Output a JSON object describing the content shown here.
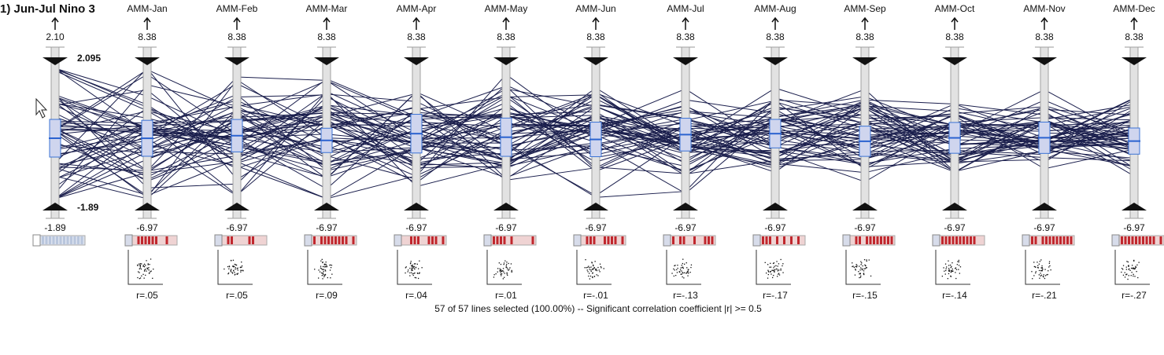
{
  "title": "1) Jun-Jul Nino 3",
  "source_axis": {
    "max": "2.10",
    "min": "-1.89",
    "brush_top": "2.095",
    "brush_bottom": "-1.89"
  },
  "axes": [
    {
      "label": "AMM-Jan",
      "max": "8.38",
      "min": "-6.97",
      "r": "r=.05"
    },
    {
      "label": "AMM-Feb",
      "max": "8.38",
      "min": "-6.97",
      "r": "r=.05"
    },
    {
      "label": "AMM-Mar",
      "max": "8.38",
      "min": "-6.97",
      "r": "r=.09"
    },
    {
      "label": "AMM-Apr",
      "max": "8.38",
      "min": "-6.97",
      "r": "r=.04"
    },
    {
      "label": "AMM-May",
      "max": "8.38",
      "min": "-6.97",
      "r": "r=.01"
    },
    {
      "label": "AMM-Jun",
      "max": "8.38",
      "min": "-6.97",
      "r": "r=-.01"
    },
    {
      "label": "AMM-Jul",
      "max": "8.38",
      "min": "-6.97",
      "r": "r=-.13"
    },
    {
      "label": "AMM-Aug",
      "max": "8.38",
      "min": "-6.97",
      "r": "r=-.17"
    },
    {
      "label": "AMM-Sep",
      "max": "8.38",
      "min": "-6.97",
      "r": "r=-.15"
    },
    {
      "label": "AMM-Oct",
      "max": "8.38",
      "min": "-6.97",
      "r": "r=-.14"
    },
    {
      "label": "AMM-Nov",
      "max": "8.38",
      "min": "-6.97",
      "r": "r=-.21"
    },
    {
      "label": "AMM-Dec",
      "max": "8.38",
      "min": "-6.97",
      "r": "r=-.27"
    }
  ],
  "status": "57 of 57 lines selected (100.00%)  -- Significant correlation coefficient  |r| >= 0.5"
}
